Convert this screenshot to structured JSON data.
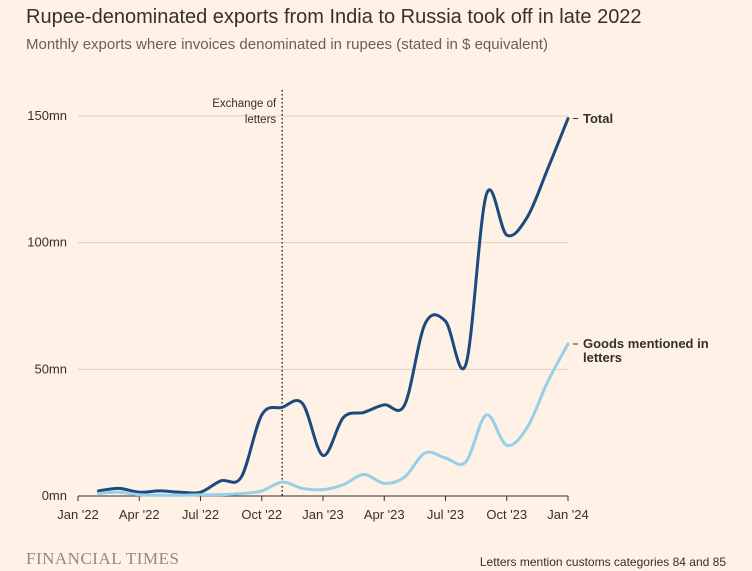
{
  "chart_data": {
    "type": "line",
    "title": "Rupee-denominated exports from India to Russia took off in late 2022",
    "subtitle": "Monthly exports where invoices denominated in rupees (stated in $ equivalent)",
    "categories": [
      "Jan '22",
      null,
      null,
      "Apr '22",
      null,
      null,
      "Jul '22",
      null,
      null,
      "Oct '22",
      null,
      null,
      "Jan '23",
      null,
      null,
      "Apr '23",
      null,
      null,
      "Jul '23",
      null,
      null,
      "Oct '23",
      null,
      null,
      "Jan '24"
    ],
    "series": [
      {
        "name": "Total",
        "color": "#1d4a7e",
        "values": [
          null,
          2,
          3,
          1.5,
          2,
          1.5,
          1.5,
          6,
          7.5,
          32,
          35,
          36.5,
          16,
          31,
          33,
          36,
          36,
          68,
          69,
          52,
          119,
          103,
          110,
          129,
          149
        ]
      },
      {
        "name": "Goods mentioned in letters",
        "color": "#96d0e4",
        "values": [
          null,
          1,
          1.5,
          0.5,
          0.3,
          0.3,
          0.5,
          0.5,
          1,
          2,
          5.5,
          3,
          2.5,
          4.5,
          8.5,
          5,
          7.5,
          17,
          15,
          13.5,
          32,
          20,
          27,
          45,
          60
        ]
      }
    ],
    "ylim": [
      0,
      150
    ],
    "yticks": [
      {
        "value": 0,
        "label": "0mn"
      },
      {
        "value": 50,
        "label": "50mn"
      },
      {
        "value": 100,
        "label": "100mn"
      },
      {
        "value": 150,
        "label": "150mn"
      }
    ],
    "grid": true,
    "annotation": {
      "text": "Exchange of letters",
      "category_index": 10
    },
    "brand": "FINANCIAL TIMES",
    "source": "Letters mention customs categories 84 and 85"
  }
}
